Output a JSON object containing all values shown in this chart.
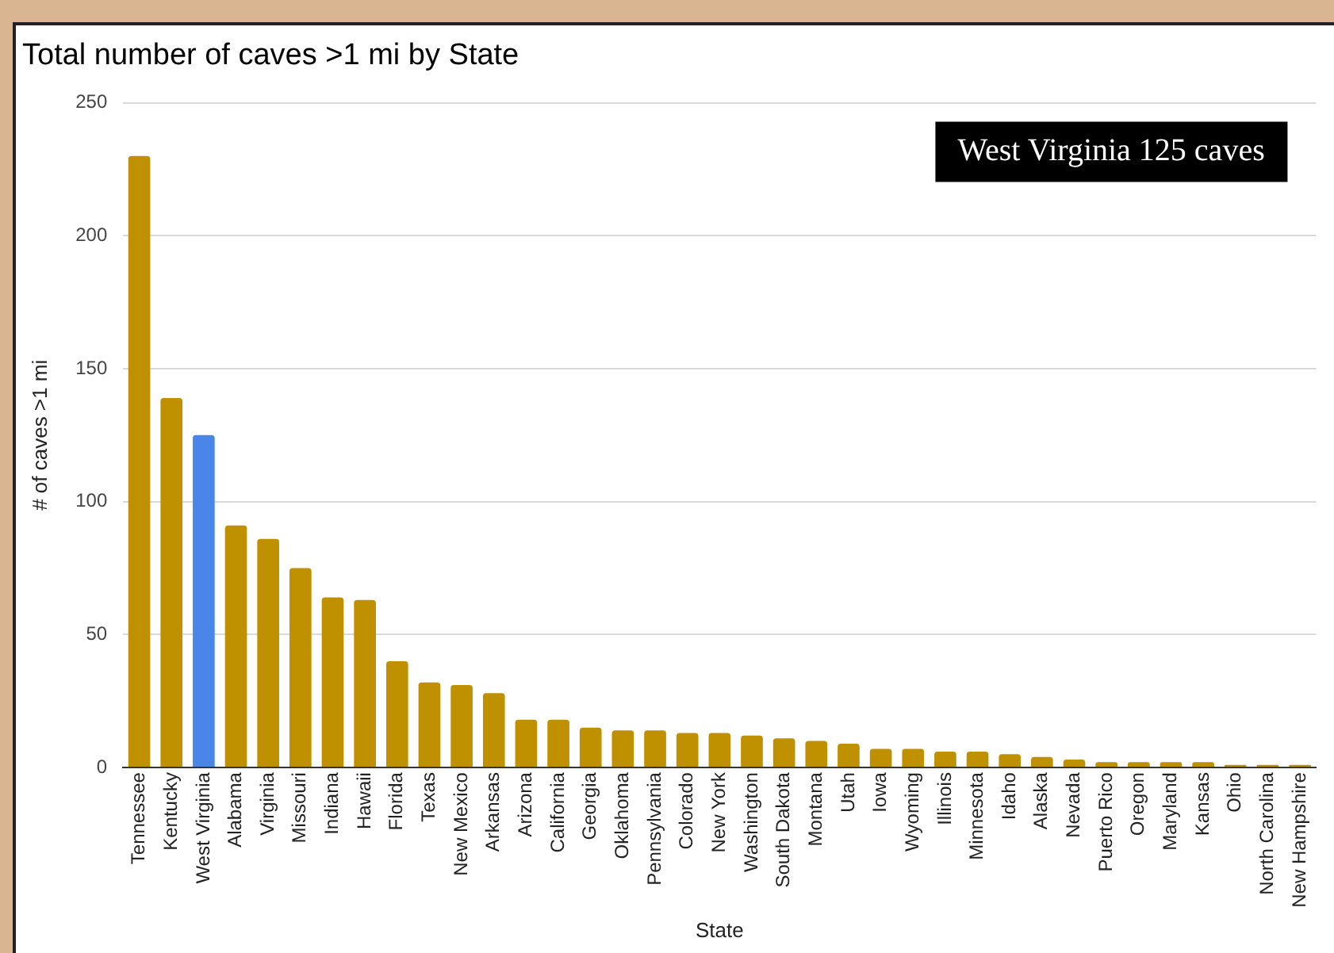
{
  "chart_data": {
    "type": "bar",
    "title": "Total number of caves >1 mi by State",
    "xlabel": "State",
    "ylabel": "# of caves >1 mi",
    "categories": [
      "Tennessee",
      "Kentucky",
      "West Virginia",
      "Alabama",
      "Virginia",
      "Missouri",
      "Indiana",
      "Hawaii",
      "Florida",
      "Texas",
      "New Mexico",
      "Arkansas",
      "Arizona",
      "California",
      "Georgia",
      "Oklahoma",
      "Pennsylvania",
      "Colorado",
      "New York",
      "Washington",
      "South Dakota",
      "Montana",
      "Utah",
      "Iowa",
      "Wyoming",
      "Illinois",
      "Minnesota",
      "Idaho",
      "Alaska",
      "Nevada",
      "Puerto Rico",
      "Oregon",
      "Maryland",
      "Kansas",
      "Ohio",
      "North Carolina",
      "New Hampshire"
    ],
    "values": [
      230,
      139,
      125,
      91,
      86,
      75,
      64,
      63,
      40,
      32,
      31,
      28,
      18,
      18,
      15,
      14,
      14,
      13,
      13,
      12,
      11,
      10,
      9,
      7,
      7,
      6,
      6,
      5,
      4,
      3,
      2,
      2,
      2,
      2,
      1,
      1,
      1
    ],
    "colors": [
      "#bf9000",
      "#bf9000",
      "#4a86e8",
      "#bf9000",
      "#bf9000",
      "#bf9000",
      "#bf9000",
      "#bf9000",
      "#bf9000",
      "#bf9000",
      "#bf9000",
      "#bf9000",
      "#bf9000",
      "#bf9000",
      "#bf9000",
      "#bf9000",
      "#bf9000",
      "#bf9000",
      "#bf9000",
      "#bf9000",
      "#bf9000",
      "#bf9000",
      "#bf9000",
      "#bf9000",
      "#bf9000",
      "#bf9000",
      "#bf9000",
      "#bf9000",
      "#bf9000",
      "#bf9000",
      "#bf9000",
      "#bf9000",
      "#bf9000",
      "#bf9000",
      "#bf9000",
      "#bf9000",
      "#bf9000"
    ],
    "ylim": [
      0,
      250
    ],
    "yticks": [
      0,
      50,
      100,
      150,
      200,
      250
    ],
    "grid": "y",
    "legend": false,
    "annotations": [
      "West Virginia 125 caves"
    ]
  }
}
